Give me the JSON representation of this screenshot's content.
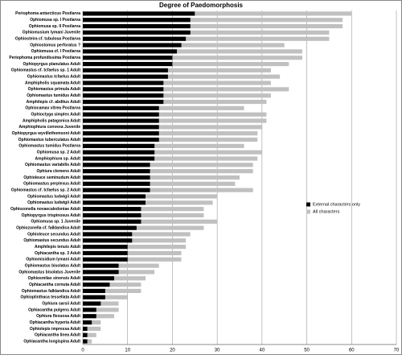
{
  "chart_data": {
    "type": "hbar-overlap",
    "title": "Degree of Paedomorphosis",
    "categories": [
      "Periophoma antarcticus Postlarva",
      "Ophiomusa sp. I Postlarva",
      "Ophiomusa sp. II Postlarva",
      "Ophiomusium lymani Juvenile",
      "Ophiosteira cf. tubulosa Postlarva",
      "Ophiostomus perforatus ?",
      "Ophiomusa cf. I Postlarva",
      "Periophoma profundissima Postlarva",
      "Ophiopyrgus planulatus Adult",
      "Ophiomastus cf. tcfaelus sp. 1 Adult",
      "Ophiomastus tcfaelus Adult",
      "Amphipholis squamata Adult",
      "Ophiomastus primula Adult",
      "Ophiomastus tumidus Adult",
      "Amphilepis cf. abditus Adult",
      "Ophiocamax vitrea Postlarva",
      "Ophioctyga simplex Adult",
      "Amphipholis patagonica Adult",
      "Amphiophiura convexa Juvenile",
      "Ophiopyrgus wyvillethomsoni Adult",
      "Ophiomastus tuberculatus Adult",
      "Ophiomastus tumidus Postlarva",
      "Ophiomusa sp. 2 Adult",
      "Amphiophiura sp. Adult",
      "Ophiomastus variabilis Adult",
      "Ophiura clemens Adult",
      "Ophioleuce seminudum Adult",
      "Ophiomastus perplexus Adult",
      "Ophiomastus cf. tcfaelus sp. 2 Adult",
      "Ophiomastus ludwigii Adult",
      "Ophiomastus ludwigii Adult",
      "Ophiozonella novaecaledoniae Adult",
      "Ophiopyrgus trispinosus Adult",
      "Ophiomusa sp. 1 Juvenile",
      "Ophiozonella cf. falklandica Adult",
      "Ophioleuce secundus Adult",
      "Ophiomastus secundus Adult",
      "Amphilepis tenuis Adult",
      "Ophiacantha sp. 3 Adult",
      "Ophiomisidium lymani Adult",
      "Ophiomastus bisolatus Adult",
      "Ophiomastus bisolatus Juvenile",
      "Ophiosmilax sinensis Adult",
      "Ophiacantha cornuta Adult",
      "Ophiomastus falklandica Adult",
      "Ophioplinthaca tessellata Adult",
      "Ophiura sarsii Adult",
      "Ophiacantha pulgens Adult",
      "Ophiura flexuosa Adult",
      "Ophiacantha hyperia Adult",
      "Ophiolepis impressa Adult",
      "Ophiacantha linea Adult",
      "Ophiacantha longispina Adult"
    ],
    "series": [
      {
        "name": "External characters only",
        "color": "#000000",
        "values": [
          25,
          24,
          24,
          24,
          23,
          22,
          21,
          20,
          20,
          19,
          19,
          18,
          18,
          18,
          18,
          17,
          17,
          17,
          17,
          17,
          17,
          16,
          16,
          16,
          15,
          15,
          15,
          15,
          15,
          14,
          14,
          13,
          13,
          13,
          12,
          11,
          11,
          10,
          10,
          10,
          8,
          8,
          7,
          6,
          5,
          5,
          4,
          3,
          3,
          2,
          1,
          1,
          1
        ]
      },
      {
        "name": "All characters",
        "color": "#c0c0c0",
        "values": [
          60,
          58,
          58,
          55,
          55,
          45,
          49,
          49,
          46,
          42,
          44,
          42,
          46,
          42,
          41,
          36,
          41,
          41,
          40,
          39,
          39,
          36,
          40,
          39,
          38,
          38,
          35,
          34,
          38,
          30,
          29,
          27,
          27,
          30,
          27,
          24,
          23,
          23,
          22,
          22,
          17,
          16,
          14,
          13,
          13,
          10,
          8,
          8,
          7,
          4,
          4,
          3,
          2
        ]
      }
    ],
    "xlim": [
      0,
      70
    ],
    "xticks": [
      0,
      10,
      20,
      30,
      40,
      50,
      60,
      70
    ],
    "grid": true,
    "legend": "right"
  }
}
